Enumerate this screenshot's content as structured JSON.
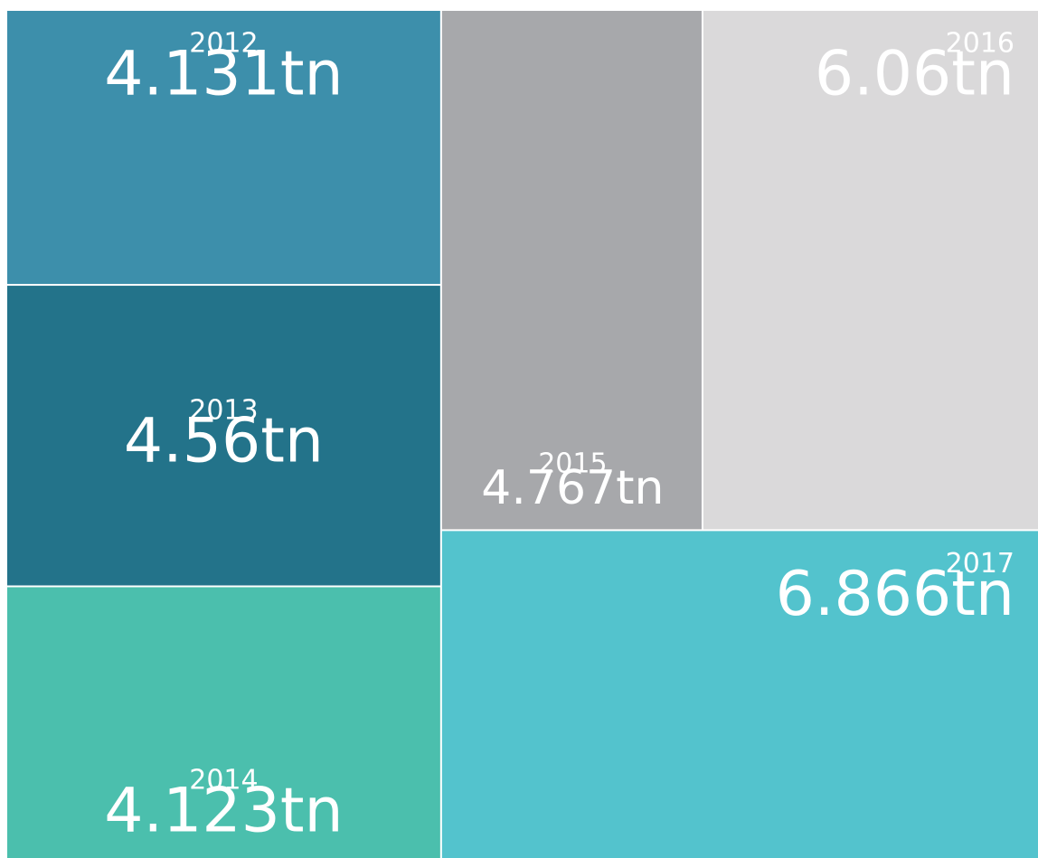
{
  "chart_data": {
    "type": "treemap",
    "categories": [
      "2012",
      "2013",
      "2014",
      "2015",
      "2016",
      "2017"
    ],
    "values": [
      4.131,
      4.56,
      4.123,
      4.767,
      6.06,
      6.866
    ],
    "value_labels": [
      "4.131tn",
      "4.56tn",
      "4.123tn",
      "4.767tn",
      "6.06tn",
      "6.866tn"
    ],
    "colors": [
      "#3d8fab",
      "#23738a",
      "#4bbfad",
      "#a7a8ab",
      "#dad9da",
      "#53c3cd"
    ]
  }
}
